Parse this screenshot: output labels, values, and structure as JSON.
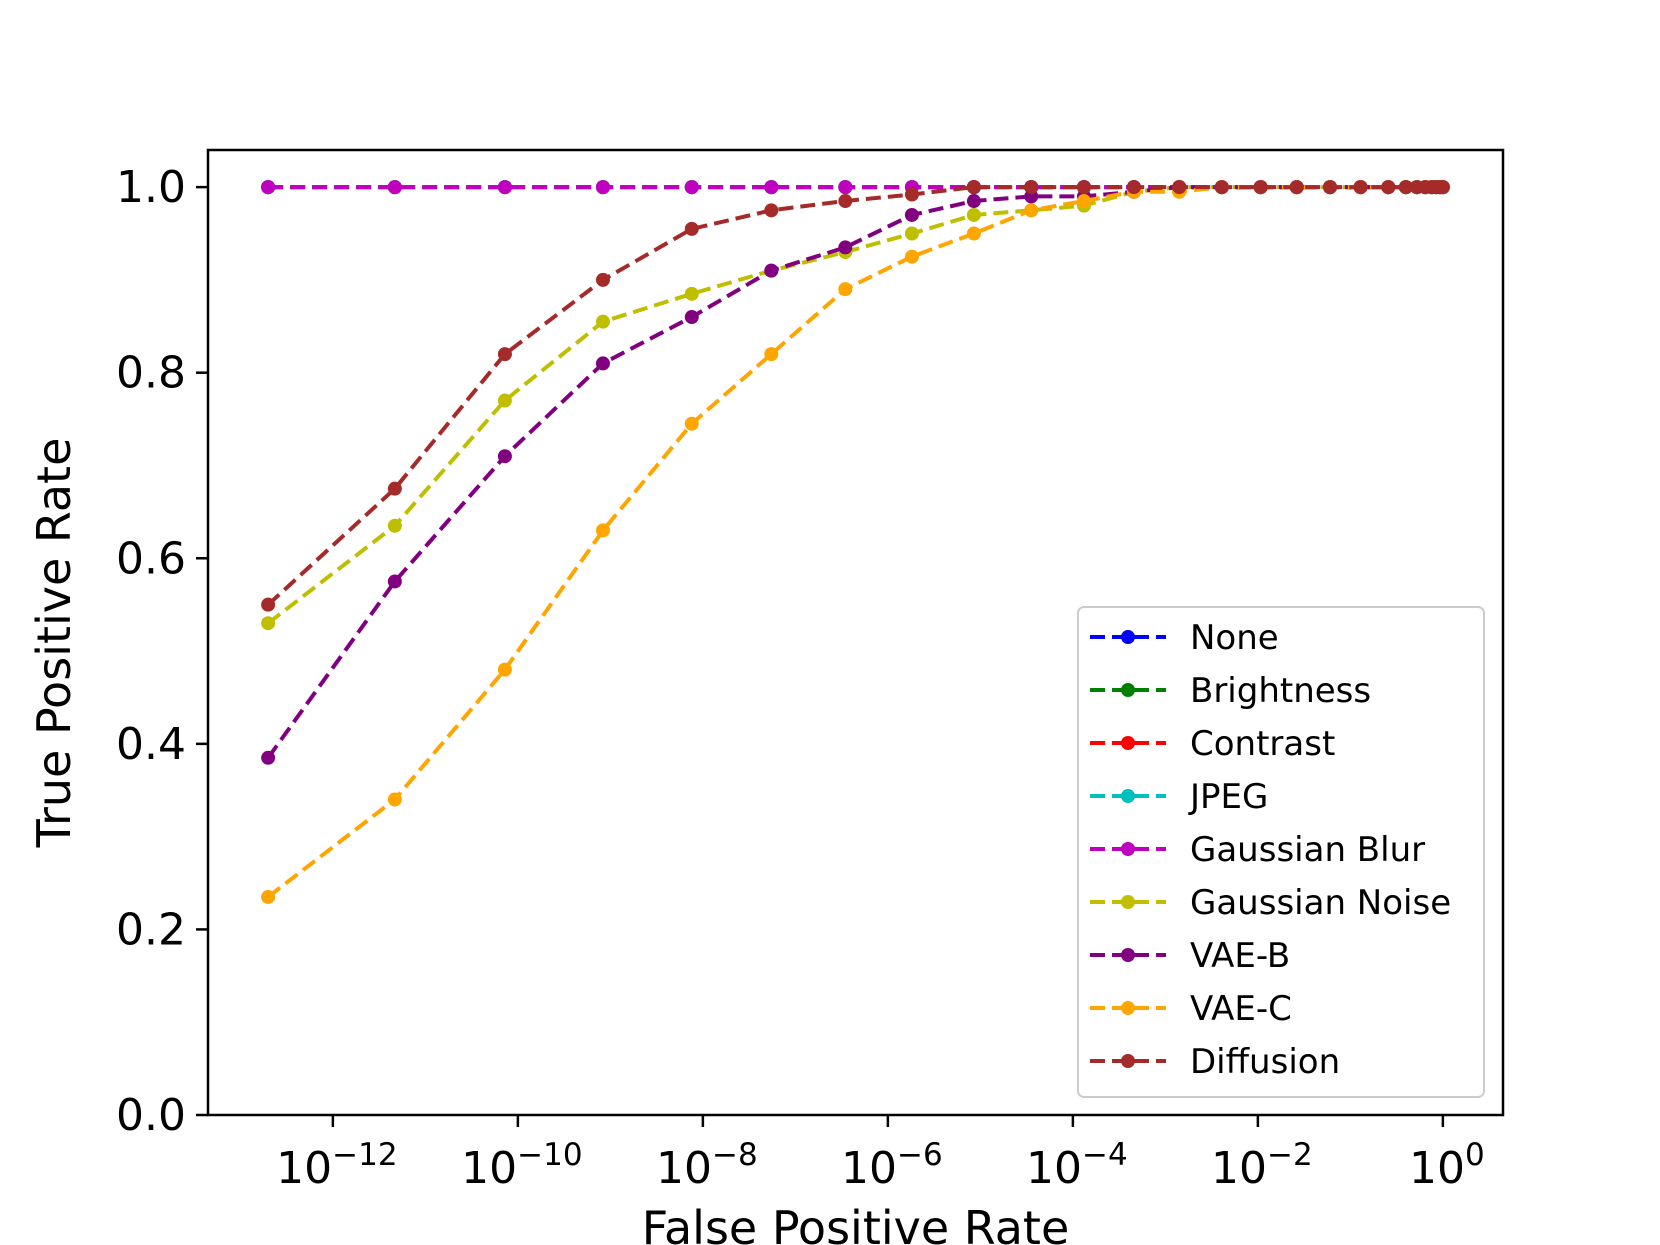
{
  "chart_data": {
    "type": "line",
    "title": "",
    "xlabel": "False Positive Rate",
    "ylabel": "True Positive Rate",
    "xscale": "log",
    "xlim_exponent": [
      -13.35,
      0.65
    ],
    "ylim": [
      0,
      1.04
    ],
    "x_ticks": [
      {
        "base": "10",
        "exp": "−12",
        "value": -12
      },
      {
        "base": "10",
        "exp": "−10",
        "value": -10
      },
      {
        "base": "10",
        "exp": "−8",
        "value": -8
      },
      {
        "base": "10",
        "exp": "−6",
        "value": -6
      },
      {
        "base": "10",
        "exp": "−4",
        "value": -4
      },
      {
        "base": "10",
        "exp": "−2",
        "value": -2
      },
      {
        "base": "10",
        "exp": "0",
        "value": 0
      }
    ],
    "y_ticks": [
      "0.0",
      "0.2",
      "0.4",
      "0.6",
      "0.8",
      "1.0"
    ],
    "legend_position": "lower right",
    "series": [
      {
        "name": "None",
        "color": "#0000ff",
        "x_log10": [
          -12.7,
          -11.33,
          -10.14,
          -9.08,
          -8.12,
          -7.26,
          -6.46,
          -5.74,
          -5.07,
          -4.45,
          -3.88,
          -3.34,
          -2.85,
          -2.39,
          -1.97,
          -1.58,
          -1.22,
          -0.89,
          -0.59,
          -0.4,
          -0.28,
          -0.19,
          -0.12,
          -0.07,
          -0.03,
          0
        ],
        "y": [
          1,
          1,
          1,
          1,
          1,
          1,
          1,
          1,
          1,
          1,
          1,
          1,
          1,
          1,
          1,
          1,
          1,
          1,
          1,
          1,
          1,
          1,
          1,
          1,
          1,
          1
        ]
      },
      {
        "name": "Brightness",
        "color": "#008000",
        "x_log10": [
          -12.7,
          -11.33,
          -10.14,
          -9.08,
          -8.12,
          -7.26,
          -6.46,
          -5.74,
          -5.07,
          -4.45,
          -3.88,
          -3.34,
          -2.85,
          -2.39,
          -1.97,
          -1.58,
          -1.22,
          -0.89,
          -0.59,
          -0.4,
          -0.28,
          -0.19,
          -0.12,
          -0.07,
          -0.03,
          0
        ],
        "y": [
          1,
          1,
          1,
          1,
          1,
          1,
          1,
          1,
          1,
          1,
          1,
          1,
          1,
          1,
          1,
          1,
          1,
          1,
          1,
          1,
          1,
          1,
          1,
          1,
          1,
          1
        ]
      },
      {
        "name": "Contrast",
        "color": "#ff0000",
        "x_log10": [
          -12.7,
          -11.33,
          -10.14,
          -9.08,
          -8.12,
          -7.26,
          -6.46,
          -5.74,
          -5.07,
          -4.45,
          -3.88,
          -3.34,
          -2.85,
          -2.39,
          -1.97,
          -1.58,
          -1.22,
          -0.89,
          -0.59,
          -0.4,
          -0.28,
          -0.19,
          -0.12,
          -0.07,
          -0.03,
          0
        ],
        "y": [
          1,
          1,
          1,
          1,
          1,
          1,
          1,
          1,
          1,
          1,
          1,
          1,
          1,
          1,
          1,
          1,
          1,
          1,
          1,
          1,
          1,
          1,
          1,
          1,
          1,
          1
        ]
      },
      {
        "name": "JPEG",
        "color": "#00bfbf",
        "x_log10": [
          -12.7,
          -11.33,
          -10.14,
          -9.08,
          -8.12,
          -7.26,
          -6.46,
          -5.74,
          -5.07,
          -4.45,
          -3.88,
          -3.34,
          -2.85,
          -2.39,
          -1.97,
          -1.58,
          -1.22,
          -0.89,
          -0.59,
          -0.4,
          -0.28,
          -0.19,
          -0.12,
          -0.07,
          -0.03,
          0
        ],
        "y": [
          1,
          1,
          1,
          1,
          1,
          1,
          1,
          1,
          1,
          1,
          1,
          1,
          1,
          1,
          1,
          1,
          1,
          1,
          1,
          1,
          1,
          1,
          1,
          1,
          1,
          1
        ]
      },
      {
        "name": "Gaussian Blur",
        "color": "#bf00bf",
        "x_log10": [
          -12.7,
          -11.33,
          -10.14,
          -9.08,
          -8.12,
          -7.26,
          -6.46,
          -5.74,
          -5.07,
          -4.45,
          -3.88,
          -3.34,
          -2.85,
          -2.39,
          -1.97,
          -1.58,
          -1.22,
          -0.89,
          -0.59,
          -0.4,
          -0.28,
          -0.19,
          -0.12,
          -0.07,
          -0.03,
          0
        ],
        "y": [
          1,
          1,
          1,
          1,
          1,
          1,
          1,
          1,
          1,
          1,
          1,
          1,
          1,
          1,
          1,
          1,
          1,
          1,
          1,
          1,
          1,
          1,
          1,
          1,
          1,
          1
        ]
      },
      {
        "name": "Gaussian Noise",
        "color": "#bfbf00",
        "x_log10": [
          -12.7,
          -11.33,
          -10.14,
          -9.08,
          -8.12,
          -7.26,
          -6.46,
          -5.74,
          -5.07,
          -4.45,
          -3.88,
          -3.34,
          -2.85,
          -2.39,
          -1.97,
          -1.58,
          -1.22,
          -0.89,
          -0.59,
          -0.4,
          -0.28,
          -0.19,
          -0.12,
          -0.07,
          -0.03,
          0
        ],
        "y": [
          0.53,
          0.635,
          0.77,
          0.855,
          0.885,
          0.91,
          0.93,
          0.95,
          0.97,
          0.975,
          0.98,
          0.995,
          1,
          1,
          1,
          1,
          1,
          1,
          1,
          1,
          1,
          1,
          1,
          1,
          1,
          1
        ]
      },
      {
        "name": "VAE-B",
        "color": "#800080",
        "x_log10": [
          -12.7,
          -11.33,
          -10.14,
          -9.08,
          -8.12,
          -7.26,
          -6.46,
          -5.74,
          -5.07,
          -4.45,
          -3.88,
          -3.34,
          -2.85,
          -2.39,
          -1.97,
          -1.58,
          -1.22,
          -0.89,
          -0.59,
          -0.4,
          -0.28,
          -0.19,
          -0.12,
          -0.07,
          -0.03,
          0
        ],
        "y": [
          0.385,
          0.575,
          0.71,
          0.81,
          0.86,
          0.91,
          0.935,
          0.97,
          0.985,
          0.99,
          0.99,
          0.995,
          1,
          1,
          1,
          1,
          1,
          1,
          1,
          1,
          1,
          1,
          1,
          1,
          1,
          1
        ]
      },
      {
        "name": "VAE-C",
        "color": "#ffa500",
        "x_log10": [
          -12.7,
          -11.33,
          -10.14,
          -9.08,
          -8.12,
          -7.26,
          -6.46,
          -5.74,
          -5.07,
          -4.45,
          -3.88,
          -3.34,
          -2.85,
          -2.39,
          -1.97,
          -1.58,
          -1.22,
          -0.89,
          -0.59,
          -0.4,
          -0.28,
          -0.19,
          -0.12,
          -0.07,
          -0.03,
          0
        ],
        "y": [
          0.235,
          0.34,
          0.48,
          0.63,
          0.745,
          0.82,
          0.89,
          0.925,
          0.95,
          0.975,
          0.985,
          0.995,
          0.995,
          1,
          1,
          1,
          1,
          1,
          1,
          1,
          1,
          1,
          1,
          1,
          1,
          1
        ]
      },
      {
        "name": "Diffusion",
        "color": "#a52a2a",
        "x_log10": [
          -12.7,
          -11.33,
          -10.14,
          -9.08,
          -8.12,
          -7.26,
          -6.46,
          -5.74,
          -5.07,
          -4.45,
          -3.88,
          -3.34,
          -2.85,
          -2.39,
          -1.97,
          -1.58,
          -1.22,
          -0.89,
          -0.59,
          -0.4,
          -0.28,
          -0.19,
          -0.12,
          -0.07,
          -0.03,
          0
        ],
        "y": [
          0.55,
          0.675,
          0.82,
          0.9,
          0.955,
          0.975,
          0.985,
          0.992,
          1,
          1,
          1,
          1,
          1,
          1,
          1,
          1,
          1,
          1,
          1,
          1,
          1,
          1,
          1,
          1,
          1,
          1
        ]
      }
    ]
  }
}
